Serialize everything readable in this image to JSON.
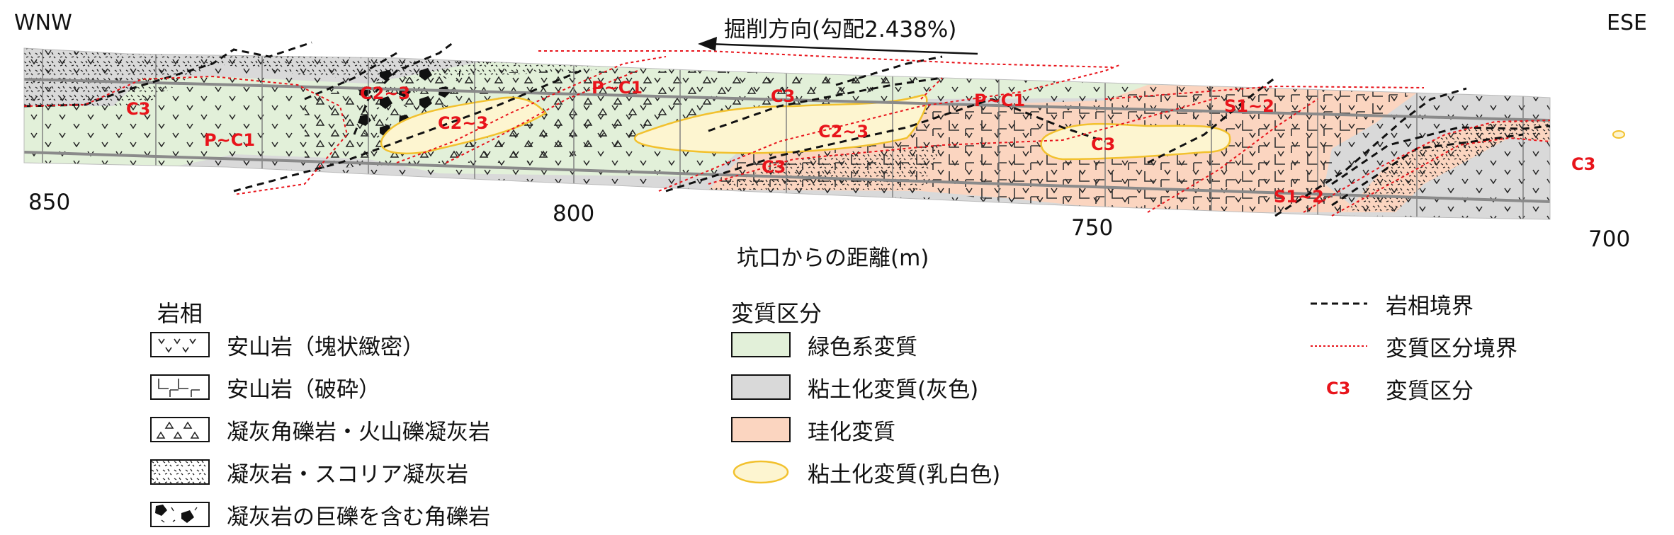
{
  "orientation": {
    "left": "WNW",
    "right": "ESE"
  },
  "direction_label": "掘削方向(勾配2.438%)",
  "axis": {
    "label": "坑口からの距離(m)",
    "ticks": [
      "850",
      "800",
      "750",
      "700"
    ]
  },
  "zone_labels": {
    "c3_a": "C3",
    "p_c1_a": "P~C1",
    "c2_3_a": "C2~3",
    "c2_3_b": "C2~3",
    "p_c1_b": "P~C1",
    "c3_b": "C3",
    "c2_3_c": "C2~3",
    "c3_c": "C3",
    "p_c1_c": "P~C1",
    "s1_2_a": "S1~2",
    "c3_d": "C3",
    "s1_2_b": "S1~2",
    "c3_e": "C3"
  },
  "legend": {
    "lithology": {
      "title": "岩相",
      "items": [
        {
          "label": "安山岩（塊状緻密）",
          "pattern": "v-marks"
        },
        {
          "label": "安山岩（破砕）",
          "pattern": "L-marks"
        },
        {
          "label": "凝灰角礫岩・火山礫凝灰岩",
          "pattern": "triangles"
        },
        {
          "label": "凝灰岩・スコリア凝灰岩",
          "pattern": "speckle"
        },
        {
          "label": "凝灰岩の巨礫を含む角礫岩",
          "pattern": "black-blocks"
        }
      ]
    },
    "alteration": {
      "title": "変質区分",
      "items": [
        {
          "label": "緑色系変質",
          "color": "#e2f0d9"
        },
        {
          "label": "粘土化変質(灰色)",
          "color": "#d9d9d9"
        },
        {
          "label": "珪化変質",
          "color": "#fbd5c0"
        },
        {
          "label": "粘土化変質(乳白色)",
          "color": "#fdf5d0",
          "border": "#f2c12e"
        }
      ]
    },
    "boundaries": {
      "items": [
        {
          "label": "岩相境界",
          "style": "black-dashed"
        },
        {
          "label": "変質区分境界",
          "style": "red-dotted"
        },
        {
          "label": "変質区分",
          "sample": "C3"
        }
      ]
    }
  },
  "colors": {
    "green": "#e2f0d9",
    "gray": "#d9d9d9",
    "salmon": "#fbd5c0",
    "cream": "#fdf5d0",
    "cream_border": "#f2c12e",
    "label_red": "#e8141b"
  }
}
